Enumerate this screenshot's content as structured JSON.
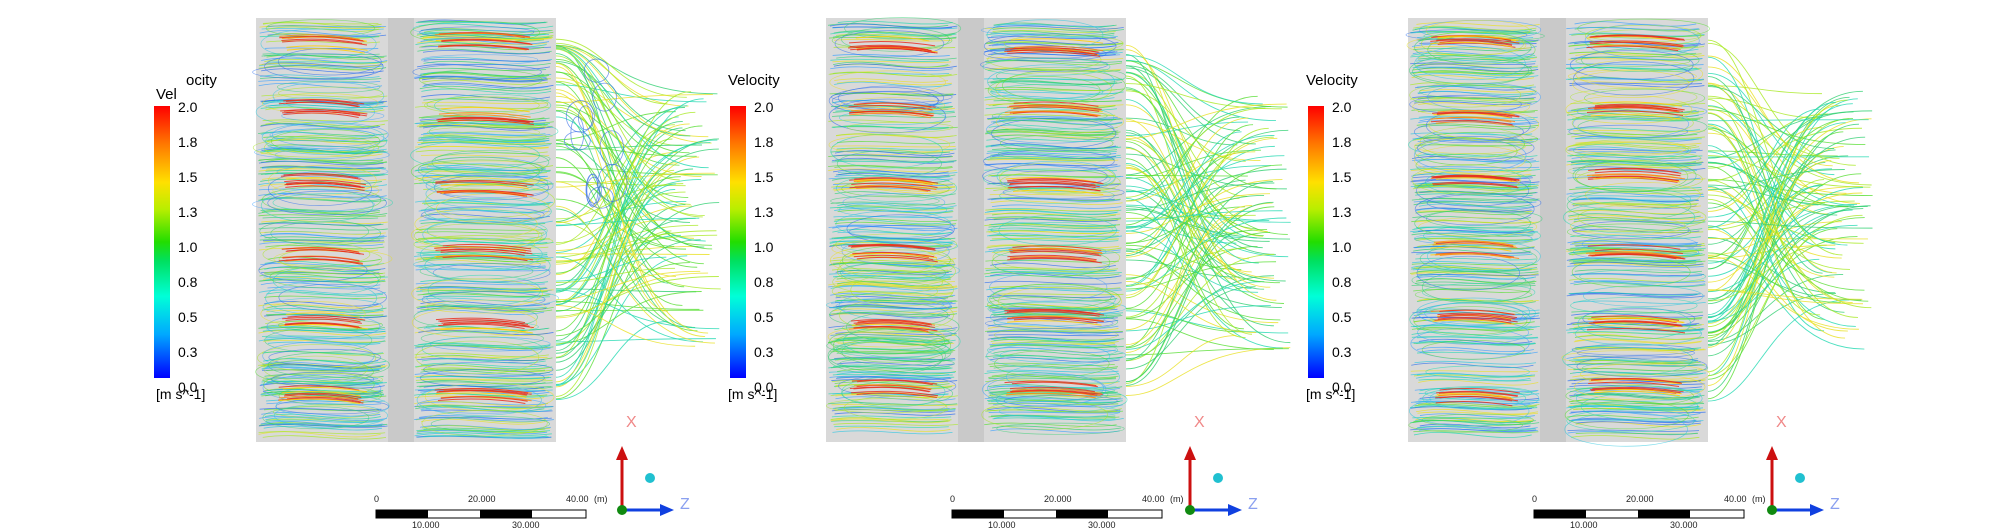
{
  "legend": {
    "title": "Velocity",
    "title_clipped_left": "Vel",
    "title_clipped_right": "ocity",
    "ticks": [
      "2.0",
      "1.8",
      "1.5",
      "1.3",
      "1.0",
      "0.8",
      "0.5",
      "0.3",
      "0.0"
    ],
    "unit": "[m s^-1]"
  },
  "scale_bar": {
    "top_labels": [
      "0",
      "20.000",
      "40.00"
    ],
    "unit": "(m)",
    "bottom_labels": [
      "10.000",
      "30.000"
    ]
  },
  "triad": {
    "x_label": "X",
    "z_label": "Z"
  },
  "colors": {
    "slow": "#0000ff",
    "mid": "#22dd00",
    "fast": "#ff0000",
    "axis_x": "#cc1010",
    "axis_z": "#1040e0",
    "axis_y": "#108a10"
  },
  "panels": [
    {
      "id": "left",
      "legend_title_style": "clipped"
    },
    {
      "id": "middle",
      "legend_title_style": "full"
    },
    {
      "id": "right",
      "legend_title_style": "full"
    }
  ]
}
